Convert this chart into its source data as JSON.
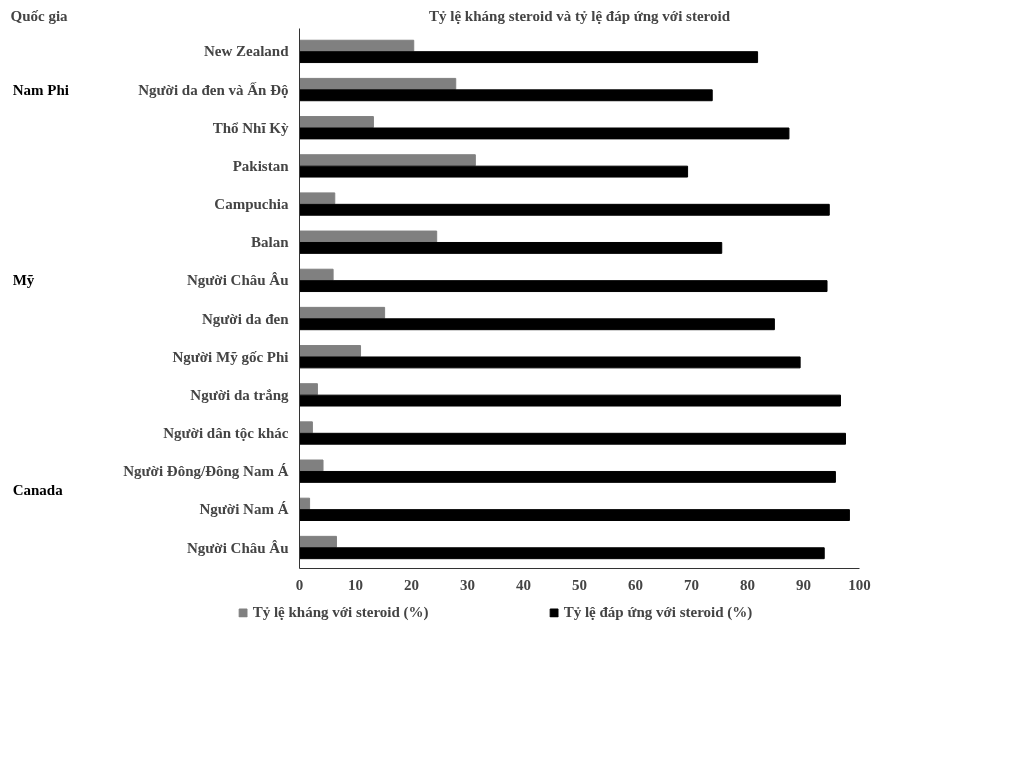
{
  "chart_data": {
    "type": "bar",
    "orientation": "horizontal",
    "title": "Tỷ lệ kháng steroid và tỷ lệ đáp ứng với steroid",
    "categories": [
      "New Zealand",
      "Người da đen và Ấn Độ",
      "Thổ Nhĩ Kỳ",
      "Pakistan",
      "Campuchia",
      "Balan",
      "Người Châu Âu",
      "Người da đen",
      "Người Mỹ gốc Phi",
      "Người da trắng",
      "Người dân tộc khác",
      "Người Đông/Đông Nam Á",
      "Người Nam Á",
      "Người Châu Âu"
    ],
    "series": [
      {
        "name": "Tỷ lệ kháng với steroid (%)",
        "color": "#808080",
        "values": [
          20.4,
          27.9,
          13.2,
          31.4,
          6.3,
          24.5,
          6.0,
          15.2,
          10.9,
          3.2,
          2.3,
          4.2,
          1.8,
          6.6
        ]
      },
      {
        "name": "Tỷ lệ đáp ứng với steroid (%)",
        "color": "#000000",
        "values": [
          81.8,
          73.7,
          87.4,
          69.3,
          94.6,
          75.4,
          94.2,
          84.8,
          89.4,
          96.6,
          97.5,
          95.7,
          98.2,
          93.7
        ]
      }
    ],
    "xlim": [
      0,
      100
    ],
    "xticks": [
      0,
      10,
      20,
      30,
      40,
      50,
      60,
      70,
      80,
      90,
      100
    ],
    "annotations": [
      "Quốc gia",
      "Nam Phi",
      "Mỹ",
      "Canada"
    ],
    "grid": false,
    "legend": "bottom"
  }
}
